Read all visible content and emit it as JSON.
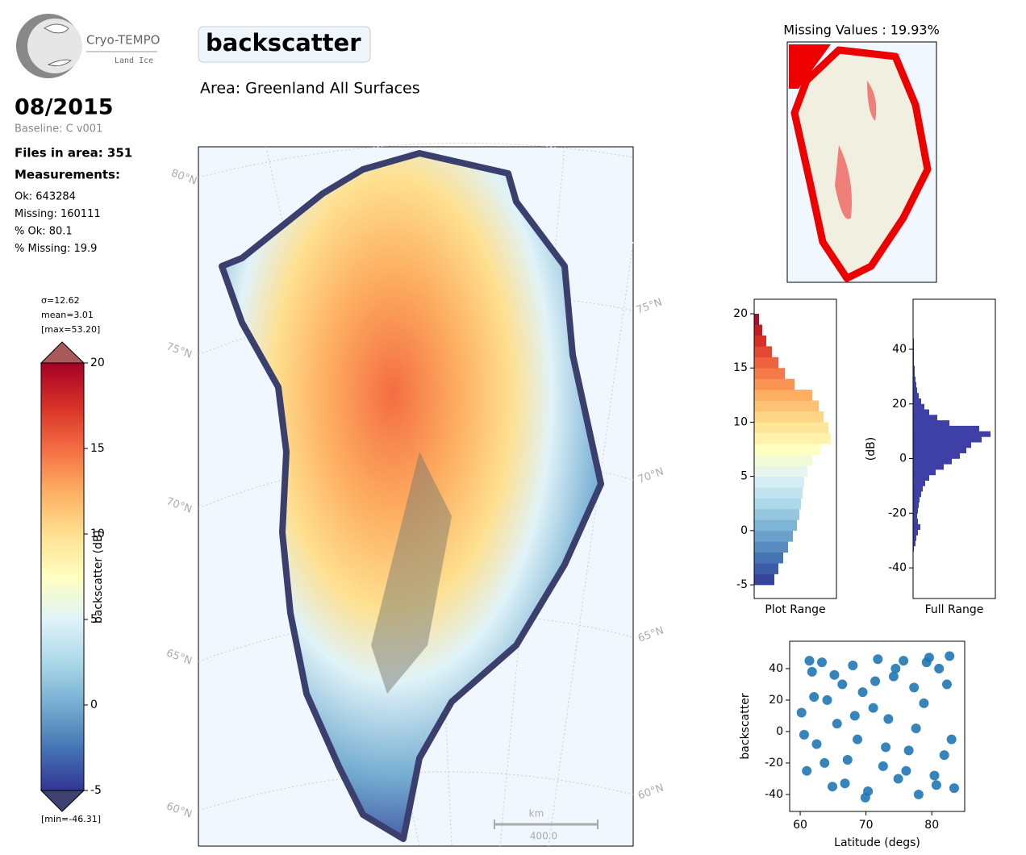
{
  "logo": {
    "name": "Cryo-TEMPO",
    "subtitle": "Land Ice"
  },
  "date": "08/2015",
  "baseline": "Baseline: C v001",
  "files": "Files in area: 351",
  "measurements_title": "Measurements:",
  "stats": [
    "Ok: 643284",
    "Missing: 160111",
    "% Ok: 80.1",
    "% Missing: 19.9"
  ],
  "title": "backscatter",
  "area": "Area: Greenland All Surfaces",
  "colorbar": {
    "label": "backscatter (dB)",
    "stats": [
      "σ=12.62",
      "mean=3.01",
      "[max=53.20]"
    ],
    "min_label": "[min=-46.31]",
    "lim": [
      -5,
      20
    ],
    "ticks": [
      -5,
      0,
      5,
      10,
      15,
      20
    ],
    "colors": [
      "#313695",
      "#4575b4",
      "#74add1",
      "#abd9e9",
      "#e0f3f8",
      "#ffffbf",
      "#fee090",
      "#fdae61",
      "#f46d43",
      "#d73027",
      "#a50026"
    ]
  },
  "map": {
    "lat_labels_left": [
      "80°N",
      "75°N",
      "70°N",
      "65°N",
      "60°N"
    ],
    "lat_labels_right": [
      "75°N",
      "70°N",
      "65°N",
      "60°N"
    ],
    "scale_unit": "km",
    "scale_length": "400.0"
  },
  "missing_map": {
    "title": "Missing Values : 19.93%"
  },
  "chart_data": [
    {
      "type": "histogram",
      "orientation": "horizontal",
      "xlabel": "Plot Range",
      "bins": [
        -5,
        -4,
        -3,
        -2,
        -1,
        0,
        1,
        2,
        3,
        4,
        5,
        6,
        7,
        8,
        9,
        10,
        11,
        12,
        13,
        14,
        15,
        16,
        17,
        18,
        19,
        20
      ],
      "values": [
        25,
        30,
        36,
        42,
        48,
        53,
        56,
        58,
        60,
        62,
        66,
        72,
        82,
        95,
        92,
        86,
        80,
        72,
        50,
        38,
        30,
        22,
        15,
        10,
        6
      ],
      "xlim": [
        0,
        102
      ],
      "ylim": [
        -6.26,
        21.34
      ],
      "yticks": [
        -5,
        0,
        5,
        10,
        15,
        20
      ]
    },
    {
      "type": "histogram",
      "orientation": "horizontal",
      "xlabel": "Full Range",
      "ylabel": "(dB)",
      "color": "#3f3fa8",
      "bins": [
        -34,
        -32,
        -30,
        -28,
        -26,
        -24,
        -22,
        -20,
        -18,
        -16,
        -14,
        -12,
        -10,
        -8,
        -6,
        -4,
        -2,
        0,
        2,
        4,
        6,
        8,
        10,
        12,
        14,
        16,
        18,
        20,
        22,
        24,
        26,
        28,
        30,
        32,
        34,
        36,
        38,
        40,
        42,
        44
      ],
      "values": [
        1,
        3,
        4,
        6,
        9,
        6,
        5,
        6,
        7,
        8,
        10,
        12,
        15,
        20,
        28,
        38,
        48,
        58,
        66,
        72,
        85,
        96,
        82,
        45,
        30,
        20,
        14,
        10,
        7,
        5,
        4,
        3,
        2,
        2,
        1,
        1,
        1,
        1,
        1
      ],
      "xlim": [
        0,
        102
      ],
      "ylim": [
        -51.2,
        58.3
      ],
      "yticks": [
        -40,
        -20,
        0,
        20,
        40
      ]
    },
    {
      "type": "scatter",
      "xlabel": "Latitude (degs)",
      "ylabel": "backscatter",
      "color": "#1f77b4",
      "x": [
        60.2,
        61.0,
        61.8,
        62.5,
        63.3,
        64.1,
        64.9,
        65.6,
        66.4,
        67.2,
        68.0,
        68.7,
        69.5,
        70.3,
        71.1,
        71.8,
        72.6,
        73.4,
        74.2,
        74.9,
        75.7,
        76.5,
        77.3,
        78.0,
        78.8,
        79.6,
        80.4,
        81.1,
        81.9,
        82.7,
        83.4,
        60.6,
        62.1,
        63.7,
        65.2,
        66.8,
        68.3,
        69.9,
        71.4,
        73.0,
        74.5,
        76.1,
        77.6,
        79.2,
        80.7,
        82.3,
        83.0,
        61.4
      ],
      "y": [
        12,
        -25,
        38,
        -8,
        44,
        20,
        -35,
        5,
        30,
        -18,
        42,
        -5,
        25,
        -38,
        15,
        46,
        -22,
        8,
        35,
        -30,
        45,
        -12,
        28,
        -40,
        18,
        47,
        -28,
        40,
        -15,
        48,
        -36,
        -2,
        22,
        -20,
        36,
        -33,
        10,
        -42,
        32,
        -10,
        40,
        -25,
        2,
        44,
        -34,
        30,
        -5,
        45
      ],
      "xlim": [
        58.4,
        85.0
      ],
      "xticks": [
        60,
        70,
        80
      ],
      "ylim": [
        -50.8,
        57.4
      ],
      "yticks": [
        -40,
        -20,
        0,
        20,
        40
      ]
    }
  ]
}
